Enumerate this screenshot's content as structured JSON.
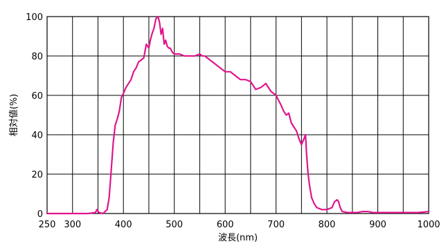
{
  "chart_data": {
    "type": "line",
    "title": "",
    "xlabel": "波長(nm)",
    "ylabel": "相対値(%)",
    "xlim": [
      250,
      1000
    ],
    "ylim": [
      0,
      100
    ],
    "x_ticks": [
      250,
      300,
      400,
      500,
      600,
      700,
      800,
      900,
      1000
    ],
    "x_grid": [
      300,
      350,
      400,
      450,
      500,
      550,
      600,
      650,
      700,
      750,
      800,
      850,
      900,
      950
    ],
    "y_ticks": [
      0,
      20,
      40,
      60,
      80,
      100
    ],
    "grid": true,
    "colors": {
      "line": "#e0148c",
      "grid": "#000000",
      "text": "#000000"
    },
    "series": [
      {
        "x": [
          250,
          300,
          330,
          345,
          348,
          352,
          360,
          368,
          372,
          376,
          380,
          384,
          388,
          392,
          396,
          400,
          405,
          410,
          415,
          420,
          425,
          430,
          435,
          440,
          445,
          450,
          453,
          456,
          460,
          464,
          468,
          471,
          474,
          477,
          480,
          483,
          486,
          489,
          492,
          496,
          500,
          505,
          510,
          520,
          530,
          540,
          550,
          555,
          560,
          570,
          580,
          590,
          600,
          610,
          620,
          630,
          640,
          650,
          660,
          670,
          680,
          685,
          690,
          700,
          710,
          715,
          720,
          725,
          730,
          735,
          740,
          745,
          750,
          755,
          758,
          760,
          763,
          766,
          770,
          775,
          780,
          790,
          800,
          810,
          815,
          820,
          823,
          826,
          830,
          840,
          850,
          860,
          870,
          880,
          890,
          900,
          920,
          940,
          960,
          980,
          1000
        ],
        "values": [
          0,
          0,
          0,
          0.5,
          2,
          0.5,
          0,
          2,
          8,
          22,
          36,
          45,
          48,
          52,
          59,
          61,
          64,
          66,
          68,
          72,
          74,
          77,
          78,
          79,
          86,
          84,
          88,
          91,
          94,
          99,
          100,
          97,
          91,
          94,
          86,
          88,
          85,
          84,
          84,
          82,
          81,
          81,
          81,
          80,
          80,
          80,
          81,
          80,
          80,
          78,
          76,
          74,
          72,
          72,
          70,
          68,
          68,
          67,
          63,
          64,
          66,
          64,
          62,
          60,
          55,
          52,
          50,
          51,
          46,
          44,
          42,
          38,
          35,
          38,
          40,
          30,
          20,
          14,
          8,
          5,
          3,
          2,
          2,
          3,
          6,
          7,
          6,
          3,
          1,
          0.5,
          0.5,
          0.5,
          1,
          1,
          0.5,
          0.5,
          0.5,
          0.5,
          0.5,
          0.5,
          1
        ]
      }
    ]
  }
}
